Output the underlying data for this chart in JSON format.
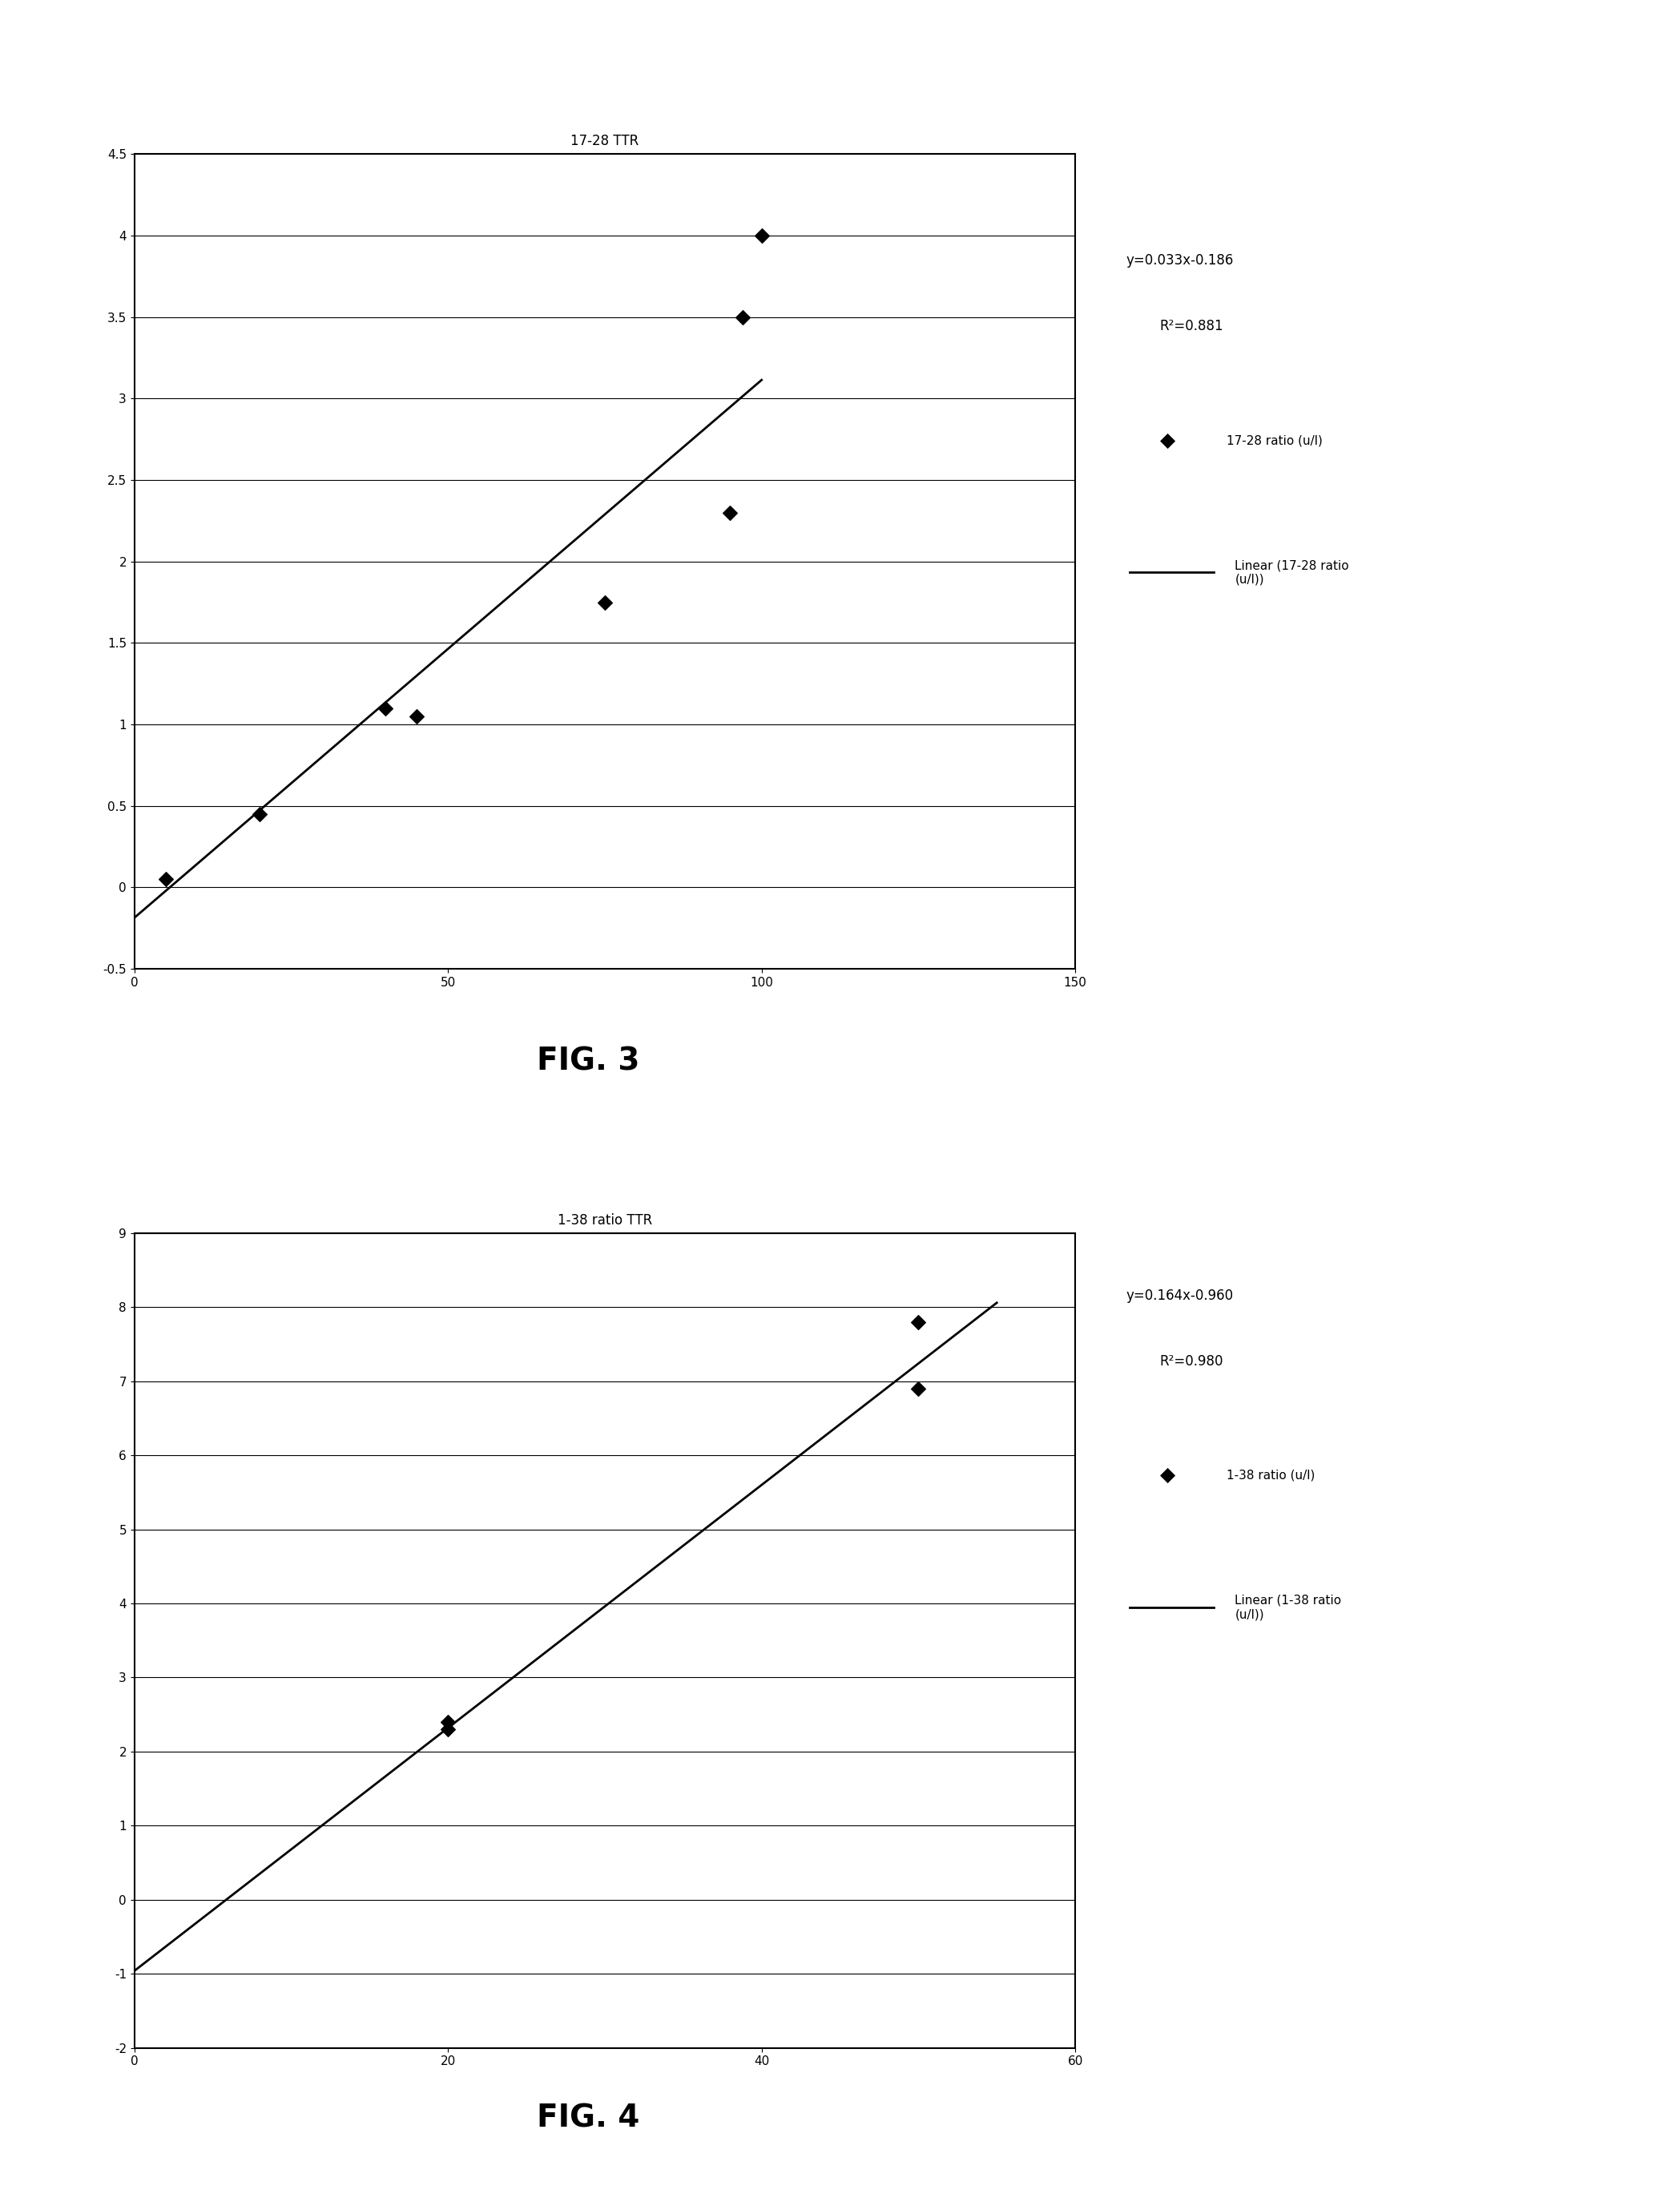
{
  "fig3": {
    "title": "17-28 TTR",
    "scatter_x": [
      5,
      20,
      40,
      45,
      75,
      95,
      100
    ],
    "scatter_y": [
      0.05,
      0.45,
      1.1,
      1.05,
      1.75,
      2.3,
      4.0
    ],
    "scatter_x2": [
      97
    ],
    "scatter_y2": [
      3.5
    ],
    "eq_line1": "y=0.033x-0.186",
    "eq_line2": "R²=0.881",
    "line_slope": 0.033,
    "line_intercept": -0.186,
    "line_x_start": 0,
    "line_x_end": 100,
    "xlim": [
      0,
      150
    ],
    "ylim": [
      -0.5,
      4.5
    ],
    "xticks": [
      0,
      50,
      100,
      150
    ],
    "yticks": [
      -0.5,
      0,
      0.5,
      1.0,
      1.5,
      2.0,
      2.5,
      3.0,
      3.5,
      4.0,
      4.5
    ],
    "yticklabels": [
      "-0.5",
      "0",
      "0.5",
      "1",
      "1.5",
      "2",
      "2.5",
      "3",
      "3.5",
      "4",
      "4.5"
    ],
    "legend_scatter": "17-28 ratio (u/l)",
    "legend_line": "Linear (17-28 ratio\n(u/l))",
    "fig_label": "FIG. 3"
  },
  "fig4": {
    "title": "1-38 ratio TTR",
    "scatter_x": [
      20,
      20,
      50,
      50
    ],
    "scatter_y": [
      2.4,
      2.3,
      7.8,
      6.9
    ],
    "eq_line1": "y=0.164x-0.960",
    "eq_line2": "R²=0.980",
    "line_slope": 0.164,
    "line_intercept": -0.96,
    "line_x_start": 0,
    "line_x_end": 55,
    "xlim": [
      0,
      60
    ],
    "ylim": [
      -2,
      9
    ],
    "xticks": [
      0,
      20,
      40,
      60
    ],
    "yticks": [
      -2,
      -1,
      0,
      1,
      2,
      3,
      4,
      5,
      6,
      7,
      8,
      9
    ],
    "yticklabels": [
      "-2",
      "-1",
      "0",
      "1",
      "2",
      "3",
      "4",
      "5",
      "6",
      "7",
      "8",
      "9"
    ],
    "legend_scatter": "1-38 ratio (u/l)",
    "legend_line": "Linear (1-38 ratio\n(u/l))",
    "fig_label": "FIG. 4"
  },
  "background_color": "#ffffff",
  "marker_color": "#000000",
  "line_color": "#000000",
  "marker": "D",
  "marker_size": 9,
  "line_width": 2.0,
  "title_fontsize": 12,
  "tick_fontsize": 11,
  "legend_eq_fontsize": 12,
  "legend_label_fontsize": 11,
  "fig_label_fontsize": 28
}
